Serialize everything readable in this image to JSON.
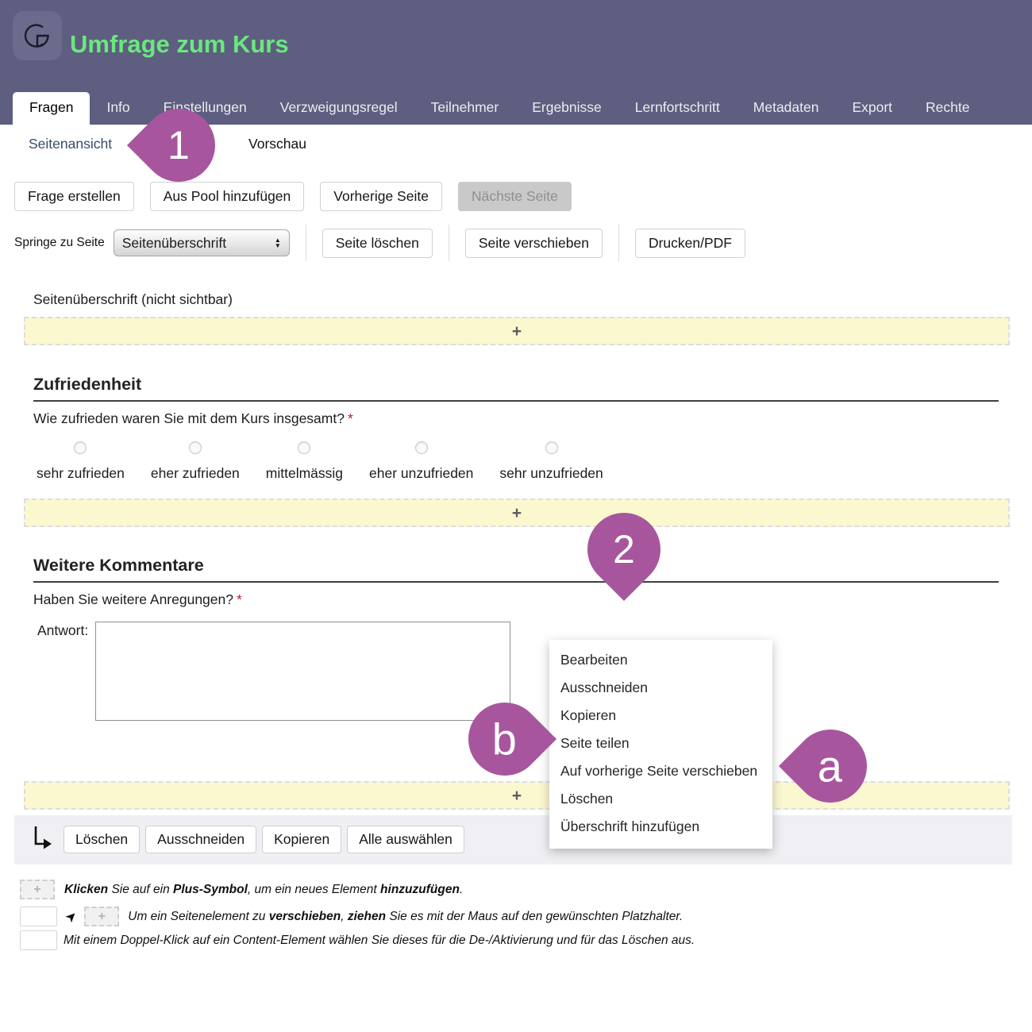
{
  "header": {
    "title": "Umfrage zum Kurs",
    "bg_color": "#5e5e80",
    "title_color": "#69e87e"
  },
  "tabs": {
    "active": "Fragen",
    "items": [
      "Fragen",
      "Info",
      "Einstellungen",
      "Verzweigungsregel",
      "Teilnehmer",
      "Ergebnisse",
      "Lernfortschritt",
      "Metadaten",
      "Export",
      "Rechte"
    ]
  },
  "subnav": {
    "active": "Seitenansicht",
    "items": [
      "Seitenansicht",
      "Vorschau"
    ]
  },
  "toolbar_top": {
    "buttons": [
      "Frage erstellen",
      "Aus Pool hinzufügen",
      "Vorherige Seite",
      "Nächste Seite"
    ],
    "disabled_button": "Nächste Seite"
  },
  "toolbar_page": {
    "jump_label": "Springe zu Seite",
    "select_value": "Seitenüberschrift",
    "buttons": [
      "Seite löschen",
      "Seite verschieben",
      "Drucken/PDF"
    ]
  },
  "page": {
    "header_note": "Seitenüberschrift (nicht sichtbar)",
    "plus_symbol": "+",
    "sections": [
      {
        "title": "Zufriedenheit",
        "question": "Wie zufrieden waren Sie mit dem Kurs insgesamt?",
        "required_mark": "*",
        "options": [
          "sehr zufrieden",
          "eher zufrieden",
          "mittelmässig",
          "eher unzufrieden",
          "sehr unzufrieden"
        ]
      },
      {
        "title": "Weitere Kommentare",
        "question": "Haben Sie weitere Anregungen?",
        "required_mark": "*",
        "answer_label": "Antwort:",
        "answer_value": ""
      }
    ]
  },
  "context_menu": {
    "items": [
      "Bearbeiten",
      "Ausschneiden",
      "Kopieren",
      "Seite teilen",
      "Auf vorherige Seite verschieben",
      "Löschen",
      "Überschrift hinzufügen"
    ]
  },
  "selection_toolbar": {
    "buttons": [
      "Löschen",
      "Ausschneiden",
      "Kopieren",
      "Alle auswählen"
    ]
  },
  "annotations": {
    "color": "#a7569d",
    "pin1": "1",
    "pin2": "2",
    "pina": "a",
    "pinb": "b"
  },
  "legend": {
    "line1": [
      {
        "t": "Klicken",
        "b": 1
      },
      {
        "t": " Sie auf ein ",
        "b": 0
      },
      {
        "t": "Plus-Symbol",
        "b": 1
      },
      {
        "t": ", um ein neues Element ",
        "b": 0
      },
      {
        "t": "hinzuzufügen",
        "b": 1
      },
      {
        "t": ".",
        "b": 0
      }
    ],
    "line2": [
      {
        "t": "Um ein Seitenelement zu ",
        "b": 0
      },
      {
        "t": "verschieben",
        "b": 1
      },
      {
        "t": ", ",
        "b": 0
      },
      {
        "t": "ziehen",
        "b": 1
      },
      {
        "t": " Sie es mit der Maus auf den gewünschten Platzhalter.",
        "b": 0
      }
    ],
    "line3": [
      {
        "t": "Mit einem Doppel-Klick auf ein Content-Element wählen Sie dieses für die De-/Aktivierung und für das Löschen aus.",
        "b": 0
      }
    ]
  },
  "colors": {
    "strip_yellow": "#fbf8d0",
    "toolbar_gray": "#f0eff3",
    "required_red": "#b02424",
    "subnav_link_blue": "#3b4a68"
  }
}
